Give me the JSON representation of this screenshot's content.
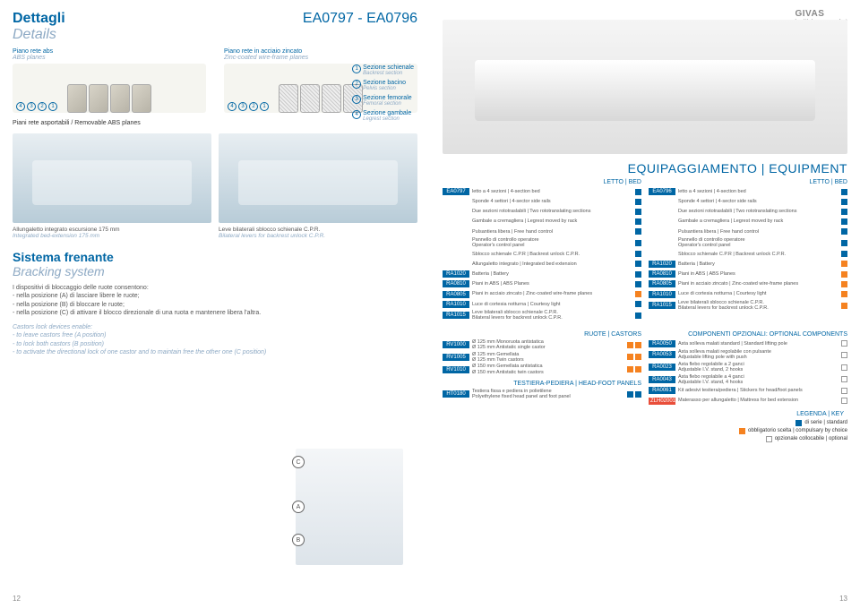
{
  "header": {
    "title_it": "Dettagli",
    "title_en": "Details",
    "model": "EA0797 - EA0796",
    "logo": "GIVAS",
    "logo_sub": "health.human.comfort"
  },
  "planes": {
    "abs_it": "Piano rete abs",
    "abs_en": "ABS planes",
    "wire_it": "Piano rete in acciaio zincato",
    "wire_en": "Zinc-coated wire-frame planes",
    "sections": [
      {
        "n": "1",
        "it": "Sezione schienale",
        "en": "Backrest section"
      },
      {
        "n": "2",
        "it": "Sezione bacino",
        "en": "Pelvis section"
      },
      {
        "n": "3",
        "it": "Sezione femorale",
        "en": "Femoral section"
      },
      {
        "n": "4",
        "it": "Sezione gambale",
        "en": "Legrest section"
      }
    ],
    "removable": "Piani rete asportabili / Removable ABS planes"
  },
  "mid_labels": {
    "ext_it": "Allungaletto integrato escursione 175 mm",
    "ext_en": "Integrated bed-extension 175 mm",
    "lev_it": "Leve bilaterali sblocco schienale C.P.R.",
    "lev_en": "Bilateral levers for backrest unlock C.P.R."
  },
  "sistema": {
    "title_it": "Sistema frenante",
    "title_en": "Bracking system",
    "desc_it": "I dispositivi di bloccaggio delle ruote consentono:\n- nella posizione (A) di lasciare libere le ruote;\n- nella posizione (B) di bloccare le ruote;\n- nella posizione (C) di attivare il blocco direzionale di una ruota e mantenere libera l'altra.",
    "desc_en": "Castors lock devices enable:\n- to leave castors free (A position)\n- to lock both castors (B position)\n- to activate the directional lock of one castor and to maintain free the other one (C position)"
  },
  "equip_title": "EQUIPAGGIAMENTO | EQUIPMENT",
  "letto_label": "LETTO | BED",
  "col_a_code": "EA0797",
  "col_b_code": "EA0796",
  "equip_rows_a": [
    {
      "code": "EA0797",
      "text": "letto a 4 sezioni | 4-section bed",
      "sq": "std"
    },
    {
      "code": "",
      "text": "Sponde 4 settori | 4-sector side rails",
      "sq": "std"
    },
    {
      "code": "",
      "text": "Due sezioni rototraslabili | Two rototranslating sections",
      "sq": "std"
    },
    {
      "code": "",
      "text": "Gambale a cremagliera | Legrest moved by rack",
      "sq": "std"
    },
    {
      "code": "",
      "text": "Pulsantiera libera | Free hand control",
      "sq": "std"
    },
    {
      "code": "",
      "text": "Pannello di controllo operatore\nOperator's control panel",
      "sq": "std"
    },
    {
      "code": "",
      "text": "Sblocco schienale C.P.R | Backrest unlock C.P.R.",
      "sq": "std"
    },
    {
      "code": "",
      "text": "Allungaletto integrato | Integrated bed extension",
      "sq": "std"
    },
    {
      "code": "RA1020",
      "text": "Batteria | Battery",
      "sq": "std"
    },
    {
      "code": "RA0810",
      "text": "Piani in ABS | ABS Planes",
      "sq": "std"
    },
    {
      "code": "RA0805",
      "text": "Piani in acciaio zincato | Zinc-coated wire-frame planes",
      "sq": "comp"
    },
    {
      "code": "RA1010",
      "text": "Luce di cortesia notturna | Courtesy light",
      "sq": "std"
    },
    {
      "code": "RA1015",
      "text": "Leve bilaterali sblocco schienale C.P.R.\nBilateral levers for backrest unlock C.P.R.",
      "sq": "std"
    }
  ],
  "equip_rows_b": [
    {
      "code": "EA0796",
      "text": "letto a 4 sezioni | 4-section bed",
      "sq": "std"
    },
    {
      "code": "",
      "text": "Sponde 4 settori | 4-sector side rails",
      "sq": "std"
    },
    {
      "code": "",
      "text": "Due sezioni rototraslabili | Two rototranslating sections",
      "sq": "std"
    },
    {
      "code": "",
      "text": "Gambale a cremagliera | Legrest moved by rack",
      "sq": "std"
    },
    {
      "code": "",
      "text": "Pulsantiera libera | Free hand control",
      "sq": "std"
    },
    {
      "code": "",
      "text": "Pannello di controllo operatore\nOperator's control panel",
      "sq": "std"
    },
    {
      "code": "",
      "text": "Sblocco schienale C.P.R | Backrest unlock C.P.R.",
      "sq": "std"
    },
    {
      "code": "RA1020",
      "text": "Batteria | Battery",
      "sq": "comp"
    },
    {
      "code": "RA0810",
      "text": "Piani in ABS | ABS Planes",
      "sq": "comp"
    },
    {
      "code": "RA0805",
      "text": "Piani in acciaio zincato | Zinc-coated wire-frame planes",
      "sq": "comp"
    },
    {
      "code": "RA1010",
      "text": "Luce di cortesia notturna | Courtesy light",
      "sq": "comp"
    },
    {
      "code": "RA1015",
      "text": "Leve bilaterali sblocco schienale C.P.R.\nBilateral levers for backrest unlock C.P.R.",
      "sq": "comp"
    }
  ],
  "ruote_title": "RUOTE | CASTORS",
  "ruote_rows": [
    {
      "code": "RV1000",
      "text": "Ø 125 mm Monoruota antistatica\nØ 125 mm Antistatic single castor",
      "sq": "comp",
      "sq2": "comp"
    },
    {
      "code": "RV1005",
      "text": "Ø 125 mm Gemellata\nØ 125 mm Twin castors",
      "sq": "comp",
      "sq2": "comp"
    },
    {
      "code": "RV1010",
      "text": "Ø 150 mm Gemellata antistatica\nØ 150 mm Antistatic twin castors",
      "sq": "comp",
      "sq2": "comp"
    }
  ],
  "testiera_title": "TESTIERA-PEDIERA | HEAD-FOOT PANELS",
  "testiera_rows": [
    {
      "code": "HT0180",
      "text": "Testiera fissa e pediera in polietilene\nPolyethylene fixed head panel and foot panel",
      "sq": "std",
      "sq2": "std"
    }
  ],
  "optional_title": "COMPONENTI OPZIONALI: OPTIONAL COMPONENTS",
  "optional_rows": [
    {
      "code": "RA0050",
      "text": "Asta solleva malati standard | Standard lifting pole",
      "sq": "opt"
    },
    {
      "code": "RA0053",
      "text": "Asta solleva malati regolabile con pulsante\nAdjustable lifting pole with push",
      "sq": "opt"
    },
    {
      "code": "RA0023",
      "text": "Asta flebo regolabile a 2 ganci\nAdjustable I.V. stand, 2 hooks",
      "sq": "opt"
    },
    {
      "code": "RA0043",
      "text": "Asta flebo regolabile a 4 ganci\nAdjustable I.V. stand, 4 hooks",
      "sq": "opt"
    },
    {
      "code": "RA0061",
      "text": "Kit adesivi testiera/pediera | Stickers for head/foot panels",
      "sq": "opt"
    },
    {
      "code": "ZLH02001",
      "text": "Materasso per allungaletto | Mattress for bed extension",
      "sq": "opt",
      "zlh": true
    }
  ],
  "legend_title": "LEGENDA | KEY",
  "legend": [
    {
      "sq": "std",
      "text": "di serie | standard"
    },
    {
      "sq": "comp",
      "text": "obbligatorio  scelta | compulsary by choice"
    },
    {
      "sq": "opt",
      "text": "opzionale collocabile | optional"
    }
  ],
  "page_left": "12",
  "page_right": "13"
}
